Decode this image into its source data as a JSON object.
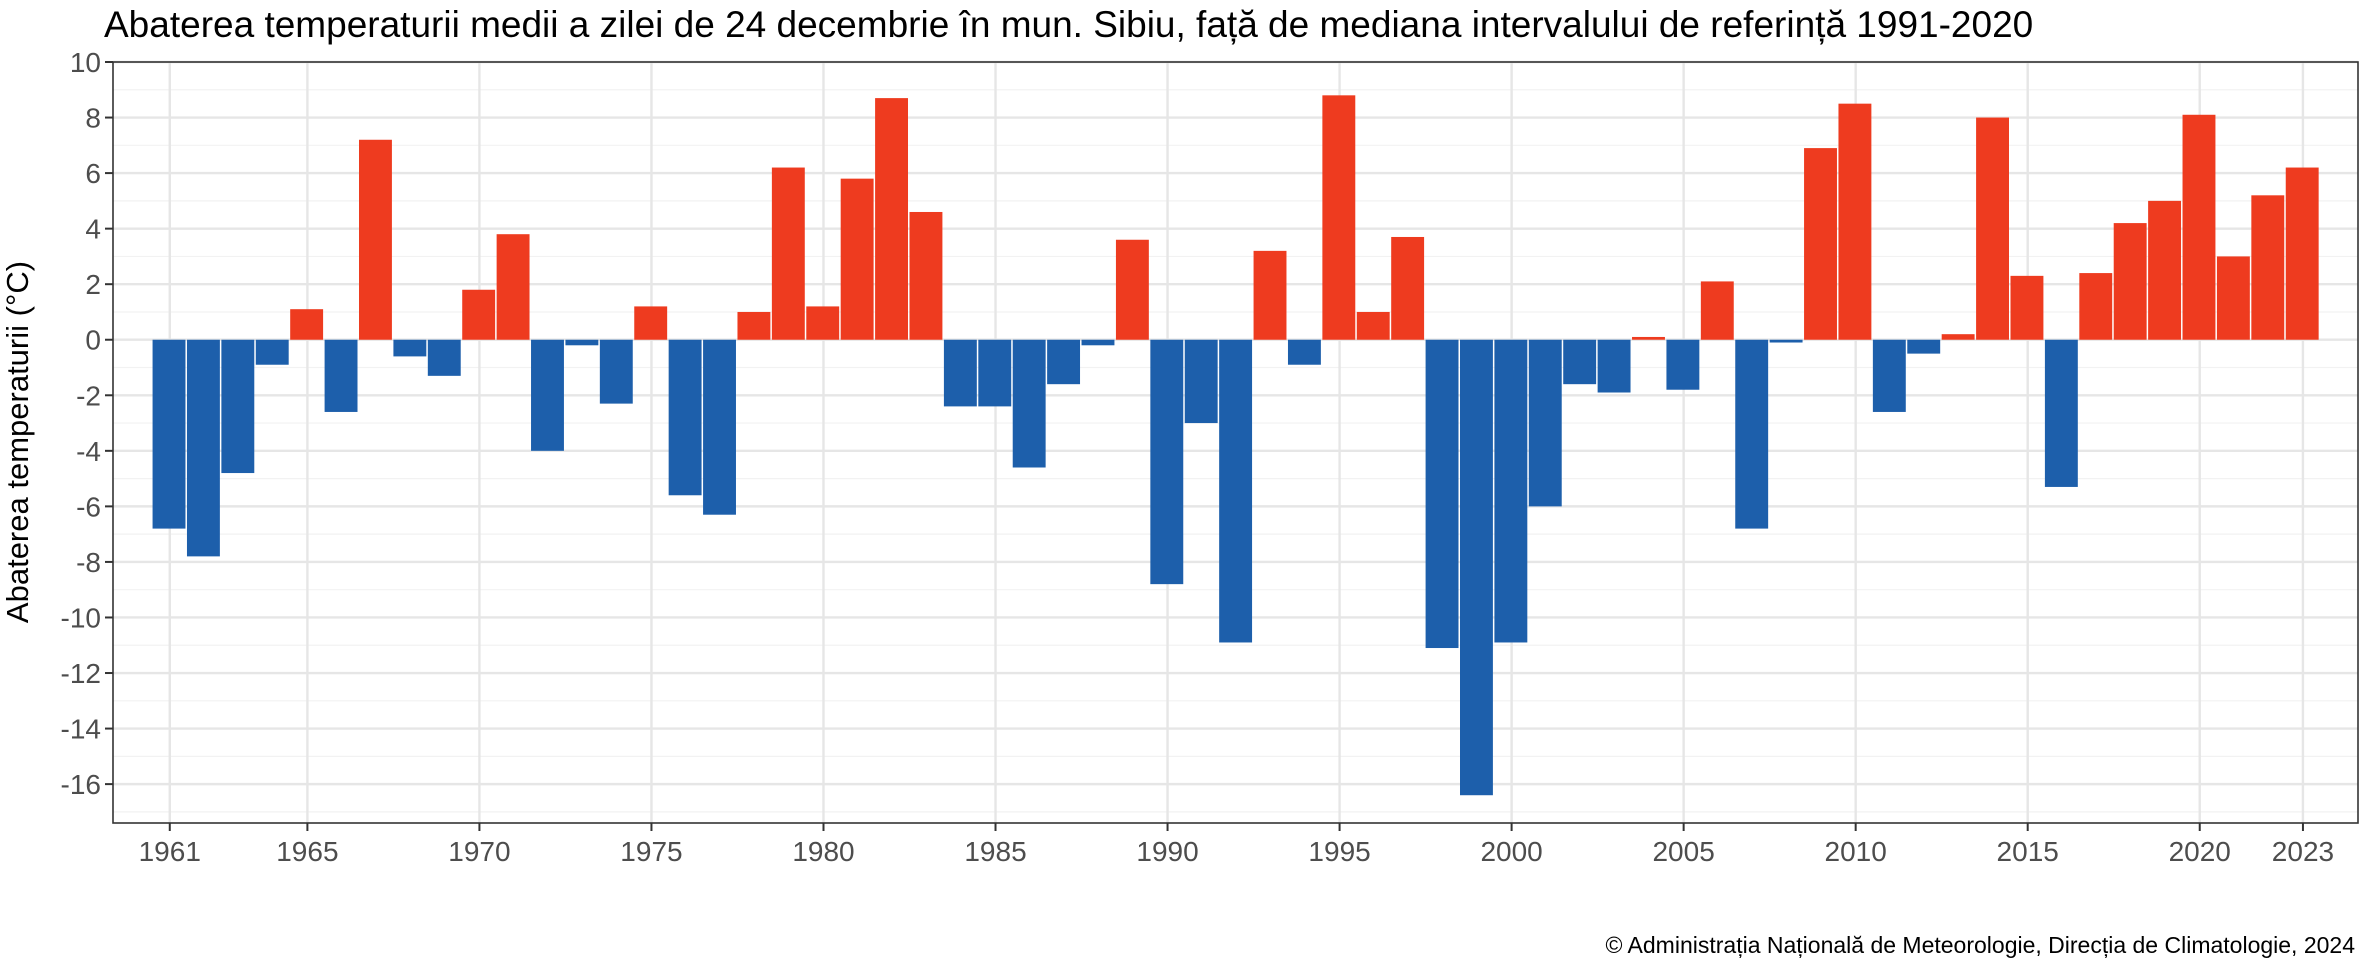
{
  "chart_data": {
    "type": "bar",
    "title": "Abaterea temperaturii medii a zilei de 24 decembrie în mun. Sibiu, față de mediana intervalului de referință 1991-2020",
    "xlabel": "",
    "ylabel": "Abaterea temperaturii (°C)",
    "caption": "© Administrația Națională de Meteorologie, Direcția de Climatologie, 2024",
    "ylim": [
      -17.4,
      10
    ],
    "xlim": [
      1959.35,
      2024.6
    ],
    "grid": true,
    "y_ticks": [
      10,
      8,
      6,
      4,
      2,
      0,
      -2,
      -4,
      -6,
      -8,
      -10,
      -12,
      -14,
      -16
    ],
    "x_ticks": [
      1961,
      1965,
      1970,
      1975,
      1980,
      1985,
      1990,
      1995,
      2000,
      2005,
      2010,
      2015,
      2020,
      2023
    ],
    "colors": {
      "positive": "#EE3B1F",
      "negative": "#1D5FAB"
    },
    "x": [
      1961,
      1962,
      1963,
      1964,
      1965,
      1966,
      1967,
      1968,
      1969,
      1970,
      1971,
      1972,
      1973,
      1974,
      1975,
      1976,
      1977,
      1978,
      1979,
      1980,
      1981,
      1982,
      1983,
      1984,
      1985,
      1986,
      1987,
      1988,
      1989,
      1990,
      1991,
      1992,
      1993,
      1994,
      1995,
      1996,
      1997,
      1998,
      1999,
      2000,
      2001,
      2002,
      2003,
      2004,
      2005,
      2006,
      2007,
      2008,
      2009,
      2010,
      2011,
      2012,
      2013,
      2014,
      2015,
      2016,
      2017,
      2018,
      2019,
      2020,
      2021,
      2022,
      2023
    ],
    "values": [
      -6.8,
      -7.8,
      -4.8,
      -0.9,
      1.1,
      -2.6,
      7.2,
      -0.6,
      -1.3,
      1.8,
      3.8,
      -4.0,
      -0.2,
      -2.3,
      1.2,
      -5.6,
      -6.3,
      1.0,
      6.2,
      1.2,
      5.8,
      8.7,
      4.6,
      -2.4,
      -2.4,
      -4.6,
      -1.6,
      -0.2,
      3.6,
      -8.8,
      -3.0,
      -10.9,
      3.2,
      -0.9,
      8.8,
      1.0,
      3.7,
      -11.1,
      -16.4,
      -10.9,
      -6.0,
      -1.6,
      -1.9,
      0.1,
      -1.8,
      2.1,
      -6.8,
      -0.1,
      6.9,
      8.5,
      -2.6,
      -0.5,
      0.2,
      8.0,
      2.3,
      -5.3,
      2.4,
      4.2,
      5.0,
      8.1,
      3.0,
      5.2,
      6.2
    ]
  }
}
